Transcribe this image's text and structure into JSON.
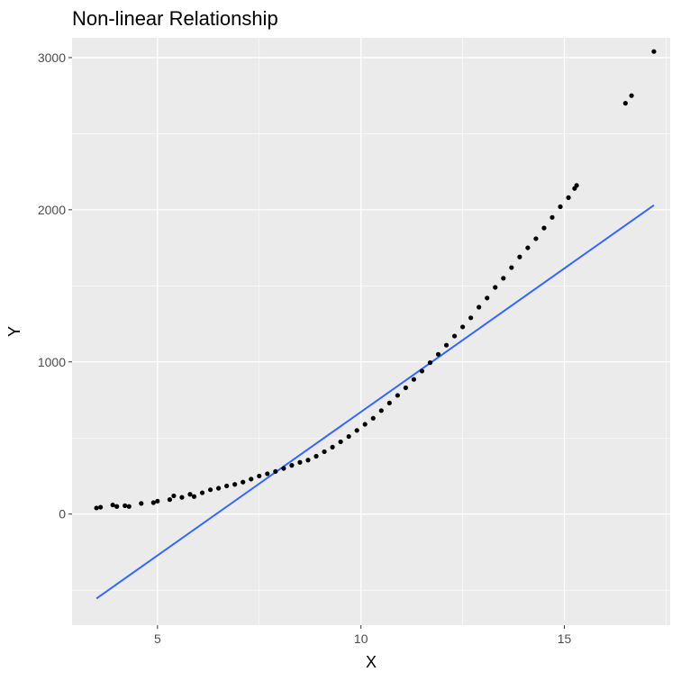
{
  "chart_data": {
    "type": "scatter",
    "title": "Non-linear Relationship",
    "xlabel": "X",
    "ylabel": "Y",
    "xlim": [
      2.9,
      17.6
    ],
    "ylim": [
      -730,
      3130
    ],
    "x_ticks": [
      5,
      10,
      15
    ],
    "y_ticks": [
      0,
      1000,
      2000,
      3000
    ],
    "x_tick_labels": [
      "5",
      "10",
      "15"
    ],
    "y_tick_labels": [
      "0",
      "1000",
      "2000",
      "3000"
    ],
    "grid": true,
    "legend": "none",
    "colors": {
      "panel_background": "#ebebeb",
      "grid_major": "#ffffff",
      "points": "#000000",
      "fit_line": "#3366ff"
    },
    "series": [
      {
        "kind": "points",
        "points": [
          [
            3.5,
            40
          ],
          [
            3.6,
            45
          ],
          [
            3.9,
            60
          ],
          [
            4.0,
            50
          ],
          [
            4.2,
            55
          ],
          [
            4.3,
            50
          ],
          [
            4.6,
            70
          ],
          [
            4.9,
            75
          ],
          [
            5.0,
            85
          ],
          [
            5.3,
            95
          ],
          [
            5.4,
            120
          ],
          [
            5.6,
            110
          ],
          [
            5.8,
            130
          ],
          [
            5.9,
            115
          ],
          [
            6.1,
            140
          ],
          [
            6.3,
            160
          ],
          [
            6.5,
            170
          ],
          [
            6.7,
            185
          ],
          [
            6.9,
            195
          ],
          [
            7.1,
            210
          ],
          [
            7.3,
            230
          ],
          [
            7.5,
            250
          ],
          [
            7.7,
            265
          ],
          [
            7.9,
            280
          ],
          [
            8.1,
            300
          ],
          [
            8.3,
            320
          ],
          [
            8.5,
            340
          ],
          [
            8.7,
            355
          ],
          [
            8.9,
            380
          ],
          [
            9.1,
            410
          ],
          [
            9.3,
            440
          ],
          [
            9.5,
            475
          ],
          [
            9.7,
            510
          ],
          [
            9.9,
            550
          ],
          [
            10.1,
            590
          ],
          [
            10.3,
            630
          ],
          [
            10.5,
            680
          ],
          [
            10.7,
            730
          ],
          [
            10.9,
            780
          ],
          [
            11.1,
            830
          ],
          [
            11.3,
            885
          ],
          [
            11.5,
            940
          ],
          [
            11.7,
            995
          ],
          [
            11.9,
            1050
          ],
          [
            12.1,
            1110
          ],
          [
            12.3,
            1170
          ],
          [
            12.5,
            1230
          ],
          [
            12.7,
            1290
          ],
          [
            12.9,
            1360
          ],
          [
            13.1,
            1420
          ],
          [
            13.3,
            1490
          ],
          [
            13.5,
            1550
          ],
          [
            13.7,
            1620
          ],
          [
            13.9,
            1690
          ],
          [
            14.1,
            1750
          ],
          [
            14.3,
            1810
          ],
          [
            14.5,
            1880
          ],
          [
            14.7,
            1950
          ],
          [
            14.9,
            2020
          ],
          [
            15.1,
            2080
          ],
          [
            15.25,
            2140
          ],
          [
            15.3,
            2160
          ],
          [
            16.5,
            2700
          ],
          [
            16.65,
            2750
          ],
          [
            17.2,
            3040
          ]
        ]
      },
      {
        "kind": "linear-fit",
        "points": [
          [
            3.5,
            -555
          ],
          [
            17.2,
            2030
          ]
        ]
      }
    ]
  }
}
